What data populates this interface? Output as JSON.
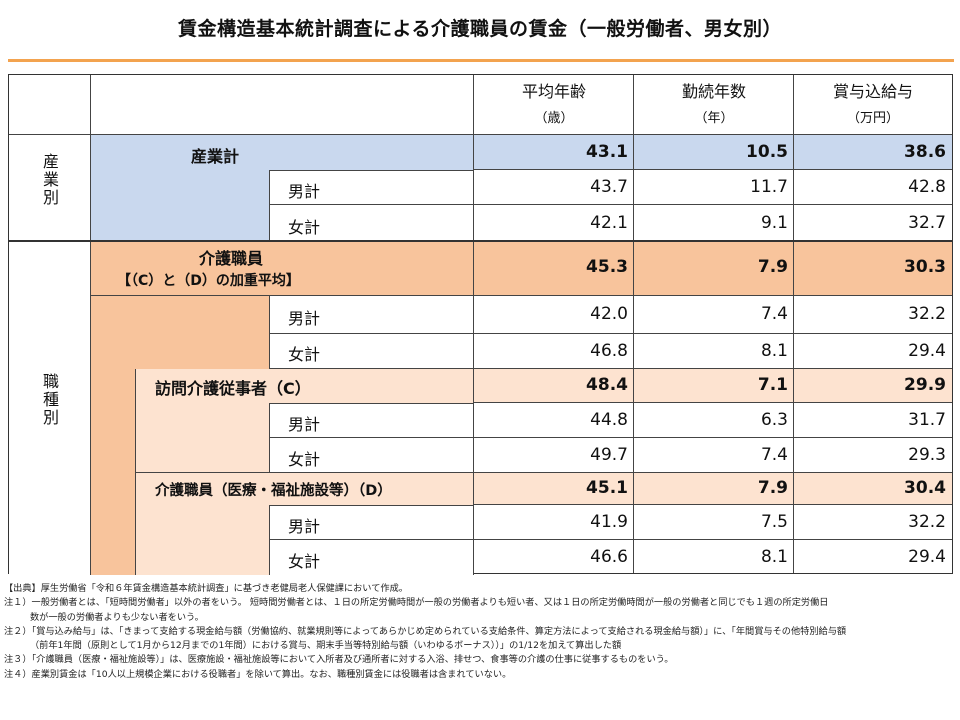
{
  "title": "賃金構造基本統計調査による介護職員の賃金（一般労働者、男女別）",
  "headers": [
    {
      "label": "平均年齢",
      "unit": "（歳）"
    },
    {
      "label": "勤続年数",
      "unit": "（年）"
    },
    {
      "label": "賞与込給与",
      "unit": "（万円）"
    }
  ],
  "groups": {
    "industry": "産業別",
    "occupation": "職種別"
  },
  "rows": {
    "industry_total": {
      "label": "産業計",
      "values": [
        "43.1",
        "10.5",
        "38.6"
      ]
    },
    "industry_male": {
      "label": "男計",
      "values": [
        "43.7",
        "11.7",
        "42.8"
      ]
    },
    "industry_female": {
      "label": "女計",
      "values": [
        "42.1",
        "9.1",
        "32.7"
      ]
    },
    "care_total": {
      "label": "介護職員",
      "sublabel": "【（C）と（D）の加重平均】",
      "values": [
        "45.3",
        "7.9",
        "30.3"
      ]
    },
    "care_male": {
      "label": "男計",
      "values": [
        "42.0",
        "7.4",
        "32.2"
      ]
    },
    "care_female": {
      "label": "女計",
      "values": [
        "46.8",
        "8.1",
        "29.4"
      ]
    },
    "visit_total": {
      "label": "訪問介護従事者（C）",
      "values": [
        "48.4",
        "7.1",
        "29.9"
      ]
    },
    "visit_male": {
      "label": "男計",
      "values": [
        "44.8",
        "6.3",
        "31.7"
      ]
    },
    "visit_female": {
      "label": "女計",
      "values": [
        "49.7",
        "7.4",
        "29.3"
      ]
    },
    "facility_total": {
      "label": "介護職員（医療・福祉施設等）（D）",
      "values": [
        "45.1",
        "7.9",
        "30.4"
      ]
    },
    "facility_male": {
      "label": "男計",
      "values": [
        "41.9",
        "7.5",
        "32.2"
      ]
    },
    "facility_female": {
      "label": "女計",
      "values": [
        "46.6",
        "8.1",
        "29.4"
      ]
    }
  },
  "notes": {
    "source": "【出典】厚生労働省「令和６年賃金構造基本統計調査」に基づき老健局老人保健課において作成。",
    "note1a": "注１）一般労働者とは、「短時間労働者」以外の者をいう。 短時間労働者とは、１日の所定労働時間が一般の労働者よりも短い者、又は１日の所定労働時間が一般の労働者と同じでも１週の所定労働日",
    "note1b": "数が一般の労働者よりも少ない者をいう。",
    "note2a": "注２）「賞与込み給与」は、「きまって支給する現金給与額（労働協約、就業規則等によってあらかじめ定められている支給条件、算定方法によって支給される現金給与額）」に、「年間賞与その他特別給与額",
    "note2b": "（前年1年間（原則として1月から12月までの1年間）における賞与、期末手当等特別給与額（いわゆるボーナス））」の1/12を加えて算出した額",
    "note3": "注３）「介護職員（医療・福祉施設等）」は、医療施設・福祉施設等において入所者及び通所者に対する入浴、排せつ、食事等の介護の仕事に従事するものをいう。",
    "note4": "注４）産業別賃金は「10人以上規模企業における役職者」を除いて算出。なお、職種別賃金には役職者は含まれていない。"
  }
}
